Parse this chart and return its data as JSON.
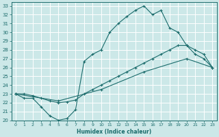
{
  "xlabel": "Humidex (Indice chaleur)",
  "bg_color": "#cce8e8",
  "grid_color": "#b0d8d8",
  "line_color": "#1a6b6b",
  "xlim": [
    -0.5,
    23.5
  ],
  "ylim": [
    20,
    33.4
  ],
  "xticks": [
    0,
    1,
    2,
    3,
    4,
    5,
    6,
    7,
    8,
    9,
    10,
    11,
    12,
    13,
    14,
    15,
    16,
    17,
    18,
    19,
    20,
    21,
    22,
    23
  ],
  "yticks": [
    20,
    21,
    22,
    23,
    24,
    25,
    26,
    27,
    28,
    29,
    30,
    31,
    32,
    33
  ],
  "line1_x": [
    0,
    1,
    2,
    3,
    4,
    5,
    6,
    7,
    8,
    9,
    10,
    11,
    12,
    13,
    14,
    15,
    16,
    17,
    18,
    19,
    20,
    21,
    22,
    23
  ],
  "line1_y": [
    23,
    22.5,
    22.5,
    21.5,
    20.5,
    20,
    20.2,
    21.2,
    26.7,
    27.5,
    28,
    30,
    31,
    31.8,
    32.5,
    33,
    32,
    32.5,
    30.5,
    30,
    28.5,
    27.5,
    27,
    26
  ],
  "line2_x": [
    0,
    1,
    2,
    3,
    4,
    5,
    6,
    7,
    8,
    9,
    10,
    11,
    12,
    13,
    14,
    15,
    16,
    17,
    18,
    19,
    20,
    21,
    22,
    23
  ],
  "line2_y": [
    23,
    23,
    22.8,
    22.5,
    22.2,
    22,
    22.1,
    22.3,
    23,
    23.5,
    24,
    24.5,
    25,
    25.5,
    26,
    26.5,
    27,
    27.5,
    28,
    28.5,
    28.5,
    28,
    27.5,
    26
  ],
  "line3_x": [
    0,
    5,
    10,
    15,
    20,
    23
  ],
  "line3_y": [
    23,
    22.2,
    23.5,
    25.5,
    27,
    26
  ]
}
